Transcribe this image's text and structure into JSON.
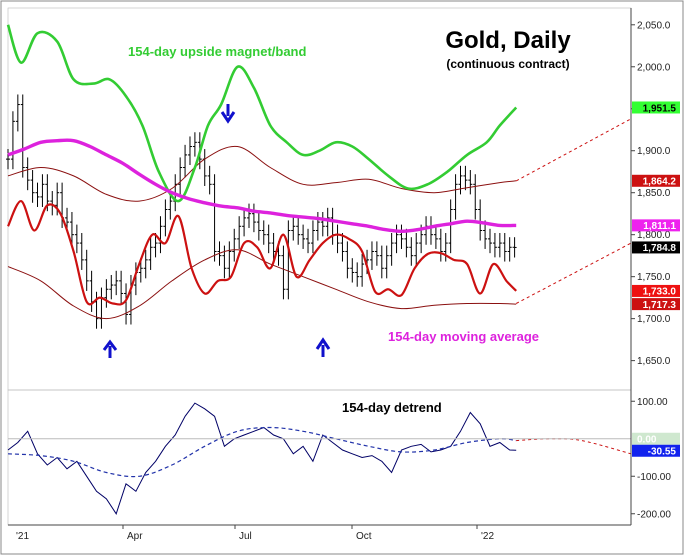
{
  "title": "Gold, Daily",
  "subtitle": "(continuous contract)",
  "annotations": {
    "upside_band": "154-day upside magnet/band",
    "moving_average": "154-day moving average",
    "detrend": "154-day detrend"
  },
  "colors": {
    "price": "#000000",
    "band_green": "#33cc33",
    "moving_average": "#dd22dd",
    "cycle_red": "#cc1111",
    "envelope": "#8b1010",
    "arrow": "#1010cc",
    "detrend": "#000066",
    "zero_fill": "#cfe8cf"
  },
  "chart_data": [
    {
      "type": "line",
      "name": "price-panel",
      "xlabel": "",
      "ylabel": "",
      "x_tick_labels": [
        "'21",
        "Apr",
        "Jul",
        "Oct",
        "'22"
      ],
      "y_tick_labels": [
        "1,650.0",
        "1,700.0",
        "1,750.0",
        "1,800.0",
        "1,850.0",
        "1,900.0",
        "1,950.0",
        "2,000.0",
        "2,050.0"
      ],
      "ylim": [
        1615,
        2070
      ],
      "price_axis_ticks": [
        1650,
        1700,
        1750,
        1800,
        1850,
        1900,
        1950,
        2000,
        2050
      ],
      "last_value_labels": [
        {
          "value": "1,951.5",
          "key": "band"
        },
        {
          "value": "1,864.2",
          "key": "upper-env"
        },
        {
          "value": "1,811.1",
          "key": "ma"
        },
        {
          "value": "1,784.8",
          "key": "price"
        },
        {
          "value": "1,733.0",
          "key": "cycle"
        },
        {
          "value": "1,717.3",
          "key": "lower-env"
        }
      ],
      "series": [
        {
          "name": "154-day upside magnet/band",
          "x": [
            0,
            8,
            18,
            30,
            40,
            52,
            62,
            72,
            82,
            92,
            104,
            114,
            122,
            130,
            140,
            150,
            160,
            170,
            180,
            190,
            200,
            210,
            220,
            232,
            244,
            256,
            268,
            280,
            292,
            300,
            310
          ],
          "y": [
            2050,
            2005,
            2040,
            2030,
            1985,
            1980,
            1985,
            1965,
            1930,
            1875,
            1840,
            1880,
            1930,
            1955,
            2000,
            1975,
            1930,
            1910,
            1895,
            1900,
            1910,
            1905,
            1890,
            1870,
            1855,
            1860,
            1875,
            1895,
            1910,
            1930,
            1951.5
          ]
        },
        {
          "name": "154-day moving average",
          "x": [
            0,
            10,
            20,
            30,
            40,
            50,
            60,
            70,
            80,
            90,
            100,
            110,
            120,
            130,
            140,
            150,
            160,
            170,
            180,
            190,
            200,
            210,
            220,
            230,
            240,
            250,
            260,
            270,
            280,
            290,
            300,
            310
          ],
          "y": [
            1895,
            1902,
            1910,
            1912,
            1912,
            1905,
            1895,
            1885,
            1872,
            1860,
            1850,
            1843,
            1838,
            1834,
            1832,
            1828,
            1826,
            1823,
            1821,
            1819,
            1816,
            1813,
            1810,
            1806,
            1804,
            1806,
            1810,
            1813,
            1816,
            1814,
            1811,
            1811.1
          ]
        },
        {
          "name": "cycle projection",
          "x": [
            0,
            8,
            16,
            24,
            32,
            40,
            48,
            56,
            64,
            72,
            80,
            88,
            96,
            104,
            112,
            120,
            128,
            136,
            144,
            152,
            160,
            168,
            176,
            184,
            192,
            200,
            208,
            216,
            224,
            232,
            240,
            248,
            256,
            264,
            272,
            280,
            288,
            296,
            304,
            310
          ],
          "y": [
            1810,
            1840,
            1805,
            1835,
            1825,
            1780,
            1720,
            1725,
            1718,
            1722,
            1765,
            1800,
            1790,
            1822,
            1760,
            1730,
            1745,
            1750,
            1790,
            1785,
            1760,
            1800,
            1750,
            1770,
            1790,
            1800,
            1795,
            1780,
            1732,
            1735,
            1728,
            1760,
            1777,
            1778,
            1770,
            1765,
            1730,
            1765,
            1745,
            1733
          ]
        },
        {
          "name": "upper envelope",
          "x": [
            0,
            20,
            40,
            60,
            80,
            100,
            120,
            140,
            160,
            180,
            200,
            220,
            240,
            260,
            280,
            300,
            310
          ],
          "y": [
            1870,
            1880,
            1870,
            1848,
            1840,
            1855,
            1890,
            1905,
            1880,
            1860,
            1862,
            1866,
            1855,
            1850,
            1856,
            1862,
            1864.2
          ]
        },
        {
          "name": "lower envelope",
          "x": [
            0,
            20,
            40,
            60,
            80,
            100,
            120,
            140,
            160,
            180,
            200,
            220,
            240,
            260,
            280,
            300,
            310
          ],
          "y": [
            1762,
            1745,
            1715,
            1700,
            1715,
            1745,
            1770,
            1782,
            1765,
            1750,
            1735,
            1720,
            1712,
            1716,
            1718,
            1718,
            1717.3
          ]
        },
        {
          "name": "projection upper",
          "x": [
            310,
            380
          ],
          "y": [
            1864,
            1938
          ]
        },
        {
          "name": "projection lower",
          "x": [
            310,
            380
          ],
          "y": [
            1718,
            1790
          ]
        }
      ],
      "price_bars": {
        "x": [
          0,
          3,
          6,
          9,
          12,
          15,
          18,
          21,
          24,
          27,
          30,
          33,
          36,
          39,
          42,
          45,
          48,
          51,
          54,
          57,
          60,
          63,
          66,
          69,
          72,
          75,
          78,
          81,
          84,
          87,
          90,
          93,
          96,
          99,
          102,
          105,
          108,
          111,
          114,
          117,
          120,
          123,
          126,
          129,
          132,
          135,
          138,
          141,
          144,
          147,
          150,
          153,
          156,
          159,
          162,
          165,
          168,
          171,
          174,
          177,
          180,
          183,
          186,
          189,
          192,
          195,
          198,
          201,
          204,
          207,
          210,
          213,
          216,
          219,
          222,
          225,
          228,
          231,
          234,
          237,
          240,
          243,
          246,
          249,
          252,
          255,
          258,
          261,
          264,
          267,
          270,
          273,
          276,
          279,
          282,
          285,
          288,
          291,
          294,
          297,
          300,
          303,
          306,
          309
        ],
        "close": [
          1890,
          1935,
          1955,
          1880,
          1865,
          1850,
          1845,
          1860,
          1840,
          1835,
          1850,
          1820,
          1815,
          1800,
          1790,
          1770,
          1745,
          1720,
          1700,
          1725,
          1735,
          1740,
          1745,
          1730,
          1705,
          1740,
          1755,
          1760,
          1770,
          1785,
          1790,
          1810,
          1830,
          1840,
          1860,
          1880,
          1895,
          1905,
          1910,
          1890,
          1870,
          1860,
          1780,
          1775,
          1760,
          1780,
          1795,
          1810,
          1820,
          1825,
          1815,
          1805,
          1800,
          1790,
          1780,
          1775,
          1735,
          1805,
          1810,
          1800,
          1795,
          1790,
          1805,
          1815,
          1810,
          1820,
          1800,
          1790,
          1780,
          1760,
          1755,
          1750,
          1765,
          1770,
          1780,
          1775,
          1760,
          1775,
          1790,
          1800,
          1795,
          1785,
          1775,
          1790,
          1800,
          1810,
          1800,
          1795,
          1780,
          1790,
          1830,
          1860,
          1870,
          1865,
          1860,
          1830,
          1805,
          1795,
          1790,
          1785,
          1790,
          1780,
          1785,
          1784.8
        ]
      }
    },
    {
      "type": "line",
      "name": "detrend-panel",
      "xlabel": "",
      "ylabel": "",
      "ylim": [
        -230,
        130
      ],
      "y_tick_labels": [
        "-200.00",
        "-100.00",
        "100.00"
      ],
      "y_ticks": [
        -200,
        -100,
        100
      ],
      "zero_label": "0.00",
      "last_value_label": "-30.55",
      "series": [
        {
          "name": "154-day detrend",
          "x": [
            0,
            6,
            12,
            18,
            24,
            30,
            36,
            42,
            48,
            54,
            60,
            66,
            72,
            78,
            84,
            90,
            96,
            102,
            108,
            114,
            120,
            126,
            132,
            138,
            144,
            150,
            156,
            162,
            168,
            174,
            180,
            186,
            192,
            198,
            204,
            210,
            216,
            222,
            228,
            234,
            240,
            246,
            252,
            258,
            264,
            270,
            276,
            282,
            288,
            294,
            300,
            306,
            310
          ],
          "y": [
            -30,
            -10,
            20,
            -40,
            -70,
            -50,
            -80,
            -60,
            -100,
            -140,
            -160,
            -200,
            -120,
            -140,
            -90,
            -60,
            -20,
            10,
            60,
            95,
            80,
            60,
            -20,
            0,
            10,
            20,
            30,
            10,
            0,
            -40,
            -20,
            -60,
            10,
            -10,
            -30,
            -40,
            -50,
            -45,
            -60,
            -90,
            -30,
            -20,
            -15,
            -35,
            -30,
            -20,
            20,
            70,
            40,
            -20,
            -10,
            -30,
            -30.55
          ]
        },
        {
          "name": "detrend cycle",
          "x": [
            0,
            20,
            40,
            60,
            80,
            100,
            120,
            140,
            160,
            180,
            200,
            220,
            240,
            260,
            280,
            300,
            310
          ],
          "y": [
            -40,
            -45,
            -60,
            -90,
            -100,
            -70,
            -20,
            20,
            30,
            20,
            0,
            -20,
            -35,
            -30,
            -10,
            0,
            -5
          ]
        },
        {
          "name": "detrend projection",
          "x": [
            310,
            330,
            350,
            380
          ],
          "y": [
            -5,
            0,
            -5,
            -40
          ]
        }
      ]
    }
  ]
}
